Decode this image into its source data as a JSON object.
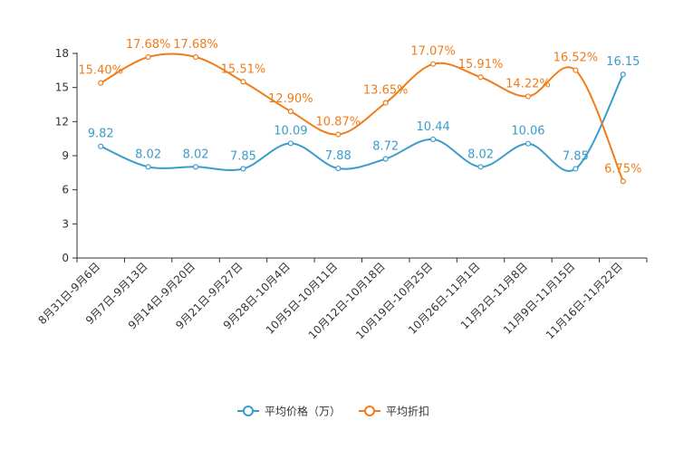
{
  "chart_data": {
    "type": "line",
    "title": "",
    "xlabel": "",
    "ylabel": "",
    "ylim": [
      0,
      18
    ],
    "yticks": [
      0,
      3,
      6,
      9,
      12,
      15,
      18
    ],
    "grid": false,
    "legend_position": "bottom-center",
    "categories": [
      "8月31日-9月6日",
      "9月7日-9月13日",
      "9月14日-9月20日",
      "9月21日-9月27日",
      "9月28日-10月4日",
      "10月5日-10月11日",
      "10月12日-10月18日",
      "10月19日-10月25日",
      "10月26日-11月1日",
      "11月2日-11月8日",
      "11月9日-11月15日",
      "11月16日-11月22日"
    ],
    "series": [
      {
        "name": "平均价格（万）",
        "color": "#3a9ccc",
        "values": [
          9.82,
          8.02,
          8.02,
          7.85,
          10.09,
          7.88,
          8.72,
          10.44,
          8.02,
          10.06,
          7.85,
          16.15
        ],
        "labels": [
          "9.82",
          "8.02",
          "8.02",
          "7.85",
          "10.09",
          "7.88",
          "8.72",
          "10.44",
          "8.02",
          "10.06",
          "7.85",
          "16.15"
        ]
      },
      {
        "name": "平均折扣",
        "color": "#f07c1a",
        "values": [
          15.4,
          17.68,
          17.68,
          15.51,
          12.9,
          10.87,
          13.65,
          17.07,
          15.91,
          14.22,
          16.52,
          6.75
        ],
        "labels": [
          "15.40%",
          "17.68%",
          "17.68%",
          "15.51%",
          "12.90%",
          "10.87%",
          "13.65%",
          "17.07%",
          "15.91%",
          "14.22%",
          "16.52%",
          "6.75%"
        ]
      }
    ]
  }
}
